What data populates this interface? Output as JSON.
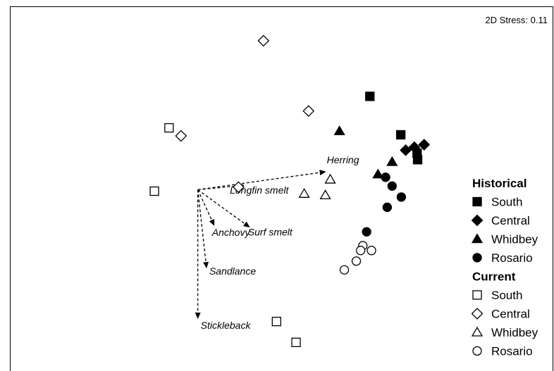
{
  "chart_data": {
    "type": "scatter",
    "title": "",
    "stress_label": "2D Stress: 0.11",
    "xlabel": "",
    "ylabel": "",
    "grid": false,
    "axes_ticks": false,
    "xlim": [
      0,
      100
    ],
    "ylim": [
      0,
      100
    ],
    "legend_position": "right",
    "legend": {
      "groups": [
        {
          "label": "Historical",
          "entries": [
            {
              "label": "South",
              "shape": "square",
              "filled": true
            },
            {
              "label": "Central",
              "shape": "diamond",
              "filled": true
            },
            {
              "label": "Whidbey",
              "shape": "triangle",
              "filled": true
            },
            {
              "label": "Rosario",
              "shape": "circle",
              "filled": true
            }
          ]
        },
        {
          "label": "Current",
          "entries": [
            {
              "label": "South",
              "shape": "square",
              "filled": false
            },
            {
              "label": "Central",
              "shape": "diamond",
              "filled": false
            },
            {
              "label": "Whidbey",
              "shape": "triangle",
              "filled": false
            },
            {
              "label": "Rosario",
              "shape": "circle",
              "filled": false
            }
          ]
        }
      ]
    },
    "series": [
      {
        "group": "Historical",
        "name": "South",
        "shape": "square",
        "filled": true,
        "points": [
          [
            66.2,
            75.6
          ],
          [
            71.9,
            65.1
          ],
          [
            74.9,
            60.1
          ],
          [
            75.0,
            58.3
          ]
        ]
      },
      {
        "group": "Historical",
        "name": "Central",
        "shape": "diamond",
        "filled": true,
        "points": [
          [
            72.8,
            60.9
          ],
          [
            74.4,
            61.7
          ],
          [
            76.2,
            62.4
          ]
        ]
      },
      {
        "group": "Historical",
        "name": "Whidbey",
        "shape": "triangle",
        "filled": true,
        "points": [
          [
            60.6,
            66.1
          ],
          [
            67.7,
            54.3
          ],
          [
            70.3,
            57.7
          ]
        ]
      },
      {
        "group": "Historical",
        "name": "Rosario",
        "shape": "circle",
        "filled": true,
        "points": [
          [
            69.1,
            53.5
          ],
          [
            70.3,
            51.1
          ],
          [
            72.0,
            48.1
          ],
          [
            69.4,
            45.3
          ],
          [
            65.6,
            38.6
          ]
        ]
      },
      {
        "group": "Current",
        "name": "South",
        "shape": "square",
        "filled": false,
        "points": [
          [
            29.2,
            67.0
          ],
          [
            26.5,
            49.7
          ],
          [
            49.0,
            14.1
          ],
          [
            52.6,
            8.4
          ]
        ]
      },
      {
        "group": "Current",
        "name": "Central",
        "shape": "diamond",
        "filled": false,
        "points": [
          [
            46.6,
            90.8
          ],
          [
            54.9,
            71.6
          ],
          [
            31.4,
            64.8
          ],
          [
            42.0,
            50.8
          ]
        ]
      },
      {
        "group": "Current",
        "name": "Whidbey",
        "shape": "triangle",
        "filled": false,
        "points": [
          [
            58.9,
            52.9
          ],
          [
            54.1,
            49.0
          ],
          [
            58.0,
            48.6
          ]
        ]
      },
      {
        "group": "Current",
        "name": "Rosario",
        "shape": "circle",
        "filled": false,
        "points": [
          [
            64.9,
            34.8
          ],
          [
            66.5,
            33.5
          ],
          [
            64.5,
            33.5
          ],
          [
            63.7,
            30.6
          ],
          [
            61.5,
            28.2
          ]
        ]
      }
    ],
    "vectors": {
      "origin": [
        34.5,
        50.1
      ],
      "items": [
        {
          "label": "Herring",
          "end": [
            58.0,
            55.0
          ]
        },
        {
          "label": "Longfin smelt",
          "end": [
            43.0,
            51.3
          ]
        },
        {
          "label": "Surf smelt",
          "end": [
            44.0,
            39.9
          ]
        },
        {
          "label": "Anchovy",
          "end": [
            37.5,
            40.4
          ]
        },
        {
          "label": "Sandlance",
          "end": [
            36.1,
            28.8
          ]
        },
        {
          "label": "Stickleback",
          "end": [
            34.5,
            15.0
          ]
        }
      ]
    }
  }
}
